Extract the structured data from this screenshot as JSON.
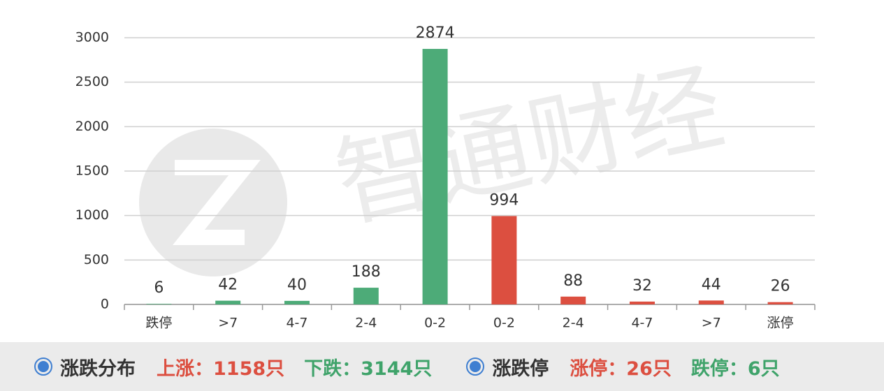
{
  "chart_data": {
    "type": "bar",
    "watermark": "智通财经",
    "categories": [
      "跌停",
      ">7",
      "4-7",
      "2-4",
      "0-2",
      "0-2",
      "2-4",
      "4-7",
      ">7",
      "涨停"
    ],
    "values": [
      6,
      42,
      40,
      188,
      2874,
      994,
      88,
      32,
      44,
      26
    ],
    "colors": [
      "#4dab78",
      "#4dab78",
      "#4dab78",
      "#4dab78",
      "#4dab78",
      "#dc4f40",
      "#dc4f40",
      "#dc4f40",
      "#dc4f40",
      "#dc4f40"
    ],
    "ylim": [
      0,
      3000
    ],
    "yticks": [
      0,
      500,
      1000,
      1500,
      2000,
      2500,
      3000
    ],
    "grid": true
  },
  "footer": {
    "sections": [
      {
        "title": "涨跌分布",
        "items": [
          {
            "text": "上涨：1158只",
            "color": "#dc4f40"
          },
          {
            "text": "下跌：3144只",
            "color": "#3fa36a"
          }
        ]
      },
      {
        "title": "涨跌停",
        "items": [
          {
            "text": "涨停：26只",
            "color": "#dc4f40"
          },
          {
            "text": "跌停：6只",
            "color": "#3fa36a"
          }
        ]
      }
    ]
  }
}
